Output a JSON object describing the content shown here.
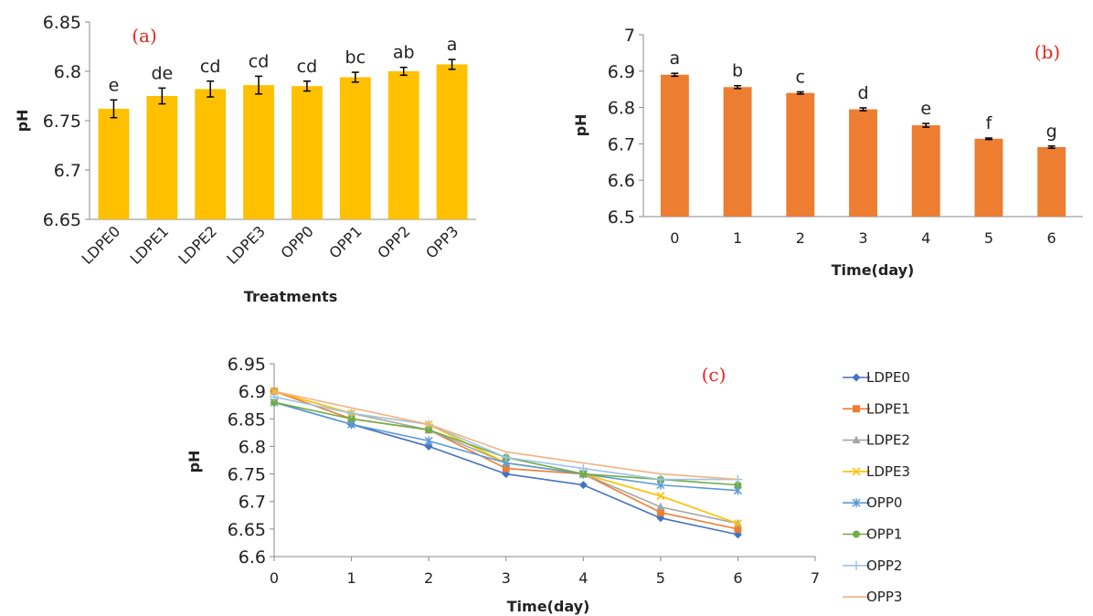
{
  "chart_data": [
    {
      "type": "bar",
      "panel_label": "(a)",
      "xlabel": "Treatments",
      "ylabel": "pH",
      "ylim": [
        6.65,
        6.85
      ],
      "yticks": [
        "6.65",
        "6.7",
        "6.75",
        "6.8",
        "6.85"
      ],
      "categories": [
        "LDPE0",
        "LDPE1",
        "LDPE2",
        "LDPE3",
        "OPP0",
        "OPP1",
        "OPP2",
        "OPP3"
      ],
      "values": [
        6.762,
        6.775,
        6.782,
        6.786,
        6.785,
        6.794,
        6.8,
        6.807
      ],
      "errors": [
        0.009,
        0.008,
        0.008,
        0.009,
        0.005,
        0.005,
        0.004,
        0.005
      ],
      "significance_letters": [
        "e",
        "de",
        "cd",
        "cd",
        "cd",
        "bc",
        "ab",
        "a"
      ],
      "bar_color": "#ffc000",
      "grid": false
    },
    {
      "type": "bar",
      "panel_label": "(b)",
      "xlabel": "Time(day)",
      "ylabel": "pH",
      "ylim": [
        6.5,
        7.0
      ],
      "yticks": [
        "6.5",
        "6.6",
        "6.7",
        "6.8",
        "6.9",
        "7"
      ],
      "categories": [
        "0",
        "1",
        "2",
        "3",
        "4",
        "5",
        "6"
      ],
      "values": [
        6.89,
        6.856,
        6.84,
        6.795,
        6.751,
        6.714,
        6.691
      ],
      "errors": [
        0.004,
        0.004,
        0.003,
        0.004,
        0.005,
        0.002,
        0.003
      ],
      "significance_letters": [
        "a",
        "b",
        "c",
        "d",
        "e",
        "f",
        "g"
      ],
      "bar_color": "#ed7d31",
      "grid": false
    },
    {
      "type": "line",
      "panel_label": "(c)",
      "xlabel": "Time(day)",
      "ylabel": "pH",
      "xlim": [
        0,
        7
      ],
      "ylim": [
        6.6,
        6.95
      ],
      "xticks": [
        "0",
        "1",
        "2",
        "3",
        "4",
        "5",
        "6",
        "7"
      ],
      "yticks": [
        "6.6",
        "6.65",
        "6.7",
        "6.75",
        "6.8",
        "6.85",
        "6.9",
        "6.95"
      ],
      "x": [
        0,
        1,
        2,
        3,
        4,
        5,
        6
      ],
      "legend_position": "right",
      "grid": false,
      "series": [
        {
          "name": "LDPE0",
          "color": "#4472c4",
          "marker": "diamond",
          "values": [
            6.88,
            6.84,
            6.8,
            6.75,
            6.73,
            6.67,
            6.64
          ]
        },
        {
          "name": "LDPE1",
          "color": "#ed7d31",
          "marker": "square",
          "values": [
            6.9,
            6.85,
            6.83,
            6.76,
            6.75,
            6.68,
            6.65
          ]
        },
        {
          "name": "LDPE2",
          "color": "#a5a5a5",
          "marker": "triangle",
          "values": [
            6.9,
            6.86,
            6.83,
            6.77,
            6.75,
            6.69,
            6.66
          ]
        },
        {
          "name": "LDPE3",
          "color": "#ffc000",
          "marker": "x",
          "values": [
            6.9,
            6.86,
            6.84,
            6.77,
            6.75,
            6.71,
            6.66
          ]
        },
        {
          "name": "OPP0",
          "color": "#5b9bd5",
          "marker": "star",
          "values": [
            6.88,
            6.84,
            6.81,
            6.77,
            6.75,
            6.73,
            6.72
          ]
        },
        {
          "name": "OPP1",
          "color": "#70ad47",
          "marker": "circle",
          "values": [
            6.88,
            6.85,
            6.83,
            6.78,
            6.75,
            6.74,
            6.73
          ]
        },
        {
          "name": "OPP2",
          "color": "#9dc3e6",
          "marker": "plus",
          "values": [
            6.89,
            6.86,
            6.84,
            6.78,
            6.76,
            6.74,
            6.74
          ]
        },
        {
          "name": "OPP3",
          "color": "#f4b183",
          "marker": "none",
          "values": [
            6.9,
            6.87,
            6.84,
            6.79,
            6.77,
            6.75,
            6.74
          ]
        }
      ]
    }
  ]
}
